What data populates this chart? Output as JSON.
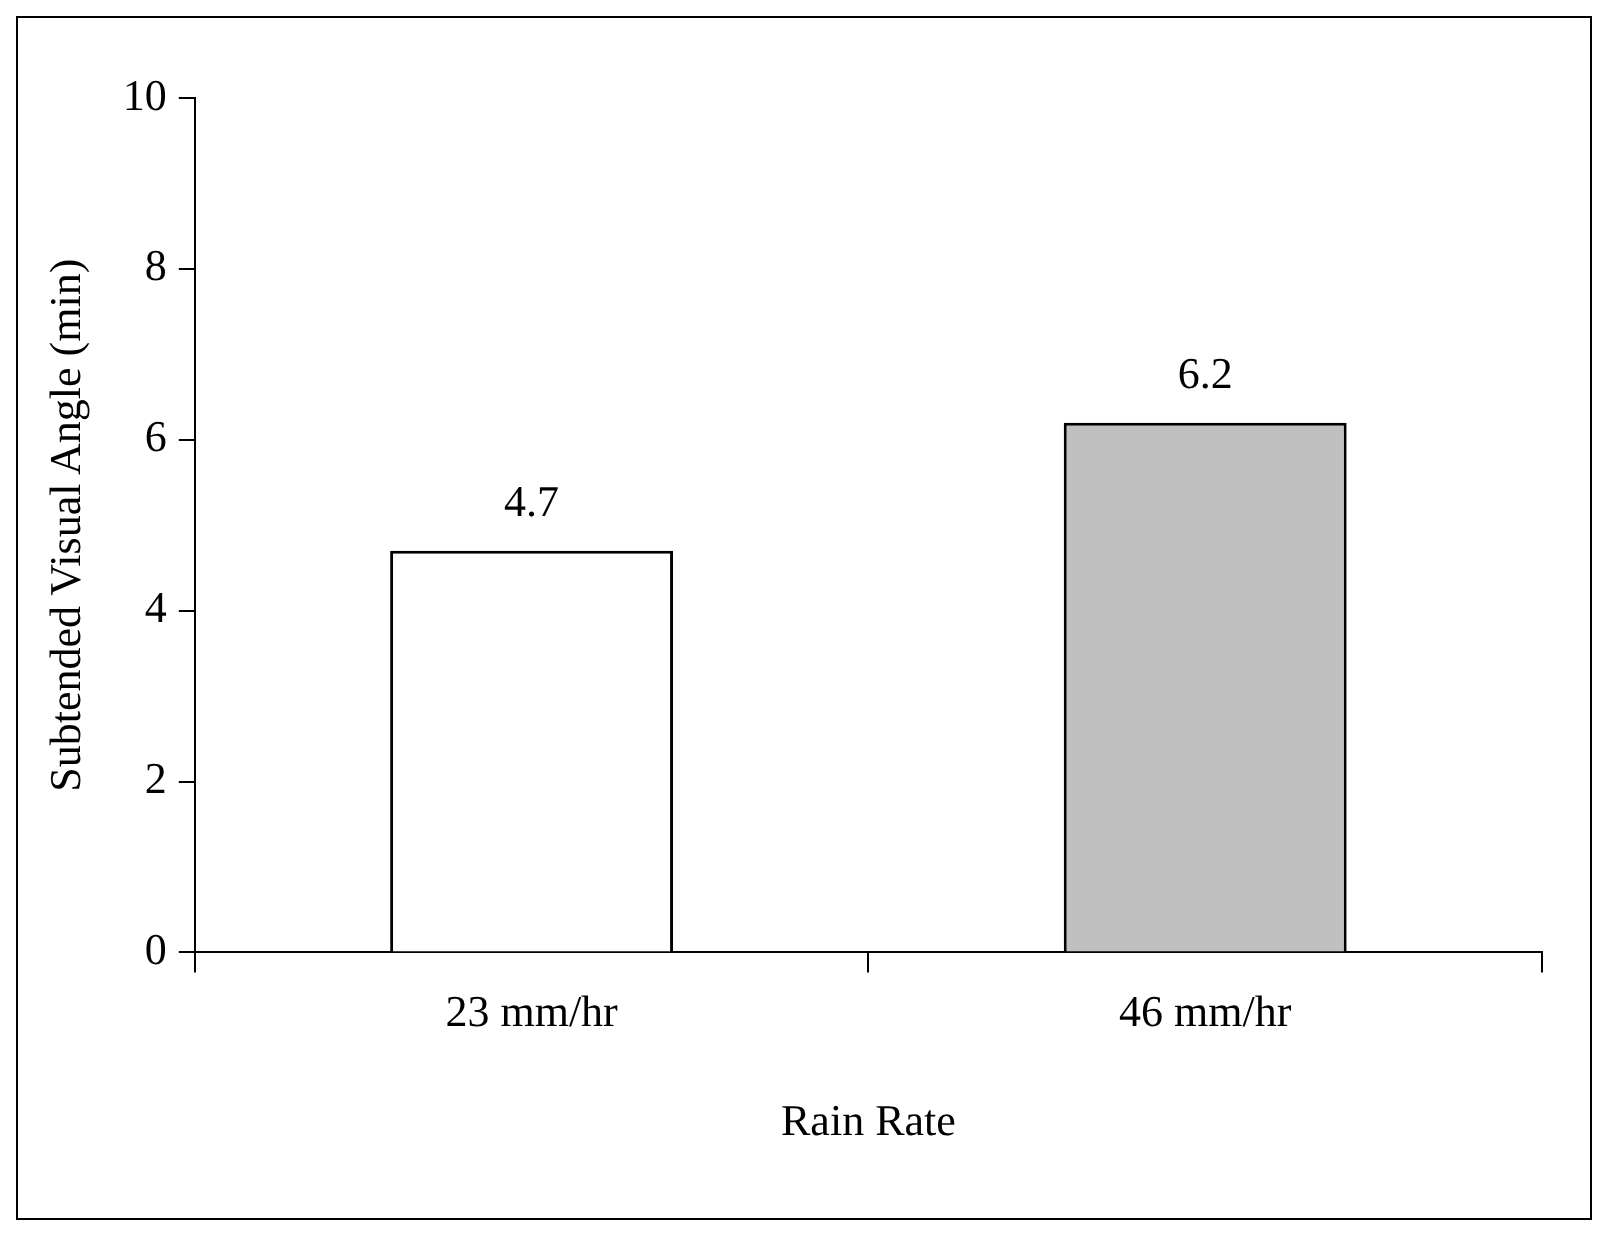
{
  "chart_data": {
    "type": "bar",
    "xlabel": "Rain Rate",
    "ylabel": "Subtended Visual Angle (min)",
    "categories": [
      "23 mm/hr",
      "46 mm/hr"
    ],
    "values": [
      4.7,
      6.2
    ],
    "colors": [
      "#ffffff",
      "#c0c0c0"
    ],
    "ylim": [
      0,
      10
    ],
    "yticks": [
      0,
      2,
      4,
      6,
      8,
      10
    ],
    "grid": false,
    "data_labels": true,
    "legend": false
  }
}
